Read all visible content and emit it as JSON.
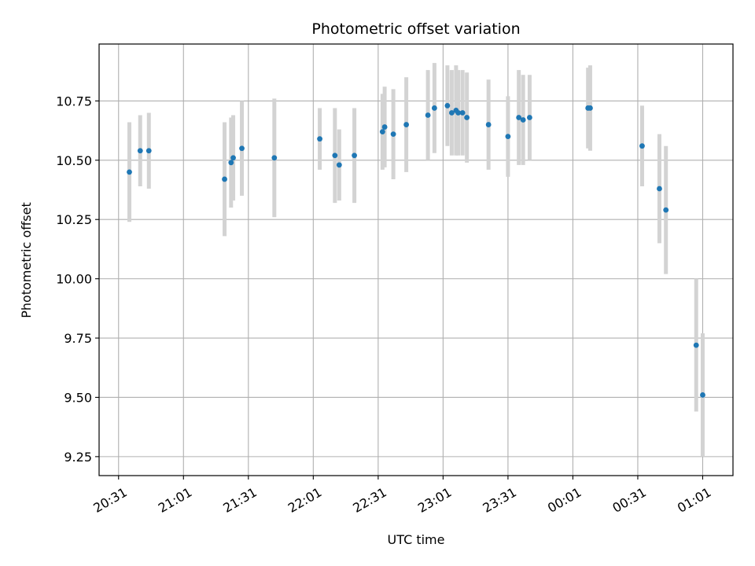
{
  "chart_data": {
    "type": "scatter",
    "title": "Photometric offset variation",
    "xlabel": "UTC time",
    "ylabel": "Photometric offset",
    "grid": true,
    "xlim": [
      "20:22",
      "01:15"
    ],
    "ylim": [
      9.17,
      10.99
    ],
    "x_ticks": [
      "20:31",
      "21:01",
      "21:31",
      "22:01",
      "22:31",
      "23:01",
      "23:31",
      "00:01",
      "00:31",
      "01:01"
    ],
    "y_ticks": [
      9.25,
      9.5,
      9.75,
      10.0,
      10.25,
      10.5,
      10.75
    ],
    "y_tick_labels": [
      "9.25",
      "9.50",
      "9.75",
      "10.00",
      "10.25",
      "10.50",
      "10.75"
    ],
    "marker_color": "#1f77b4",
    "errorbar_color": "#d3d3d3",
    "points": [
      {
        "x": "20:36",
        "y": 10.45,
        "yerr": 0.21
      },
      {
        "x": "20:41",
        "y": 10.54,
        "yerr": 0.15
      },
      {
        "x": "20:45",
        "y": 10.54,
        "yerr": 0.16
      },
      {
        "x": "21:20",
        "y": 10.42,
        "yerr": 0.24
      },
      {
        "x": "21:23",
        "y": 10.49,
        "yerr": 0.19
      },
      {
        "x": "21:24",
        "y": 10.51,
        "yerr": 0.18
      },
      {
        "x": "21:28",
        "y": 10.55,
        "yerr": 0.2
      },
      {
        "x": "21:43",
        "y": 10.51,
        "yerr": 0.25
      },
      {
        "x": "22:04",
        "y": 10.59,
        "yerr": 0.13
      },
      {
        "x": "22:11",
        "y": 10.52,
        "yerr": 0.2
      },
      {
        "x": "22:13",
        "y": 10.48,
        "yerr": 0.15
      },
      {
        "x": "22:20",
        "y": 10.52,
        "yerr": 0.2
      },
      {
        "x": "22:33",
        "y": 10.62,
        "yerr": 0.16
      },
      {
        "x": "22:34",
        "y": 10.64,
        "yerr": 0.17
      },
      {
        "x": "22:38",
        "y": 10.61,
        "yerr": 0.19
      },
      {
        "x": "22:44",
        "y": 10.65,
        "yerr": 0.2
      },
      {
        "x": "22:54",
        "y": 10.69,
        "yerr": 0.19
      },
      {
        "x": "22:57",
        "y": 10.72,
        "yerr": 0.19
      },
      {
        "x": "23:03",
        "y": 10.73,
        "yerr": 0.17
      },
      {
        "x": "23:05",
        "y": 10.7,
        "yerr": 0.18
      },
      {
        "x": "23:07",
        "y": 10.71,
        "yerr": 0.19
      },
      {
        "x": "23:08",
        "y": 10.7,
        "yerr": 0.18
      },
      {
        "x": "23:10",
        "y": 10.7,
        "yerr": 0.18
      },
      {
        "x": "23:12",
        "y": 10.68,
        "yerr": 0.19
      },
      {
        "x": "23:22",
        "y": 10.65,
        "yerr": 0.19
      },
      {
        "x": "23:31",
        "y": 10.6,
        "yerr": 0.17
      },
      {
        "x": "23:36",
        "y": 10.68,
        "yerr": 0.2
      },
      {
        "x": "23:38",
        "y": 10.67,
        "yerr": 0.19
      },
      {
        "x": "23:41",
        "y": 10.68,
        "yerr": 0.18
      },
      {
        "x": "00:08",
        "y": 10.72,
        "yerr": 0.17
      },
      {
        "x": "00:09",
        "y": 10.72,
        "yerr": 0.18
      },
      {
        "x": "00:33",
        "y": 10.56,
        "yerr": 0.17
      },
      {
        "x": "00:41",
        "y": 10.38,
        "yerr": 0.23
      },
      {
        "x": "00:44",
        "y": 10.29,
        "yerr": 0.27
      },
      {
        "x": "00:58",
        "y": 9.72,
        "yerr": 0.28
      },
      {
        "x": "01:01",
        "y": 9.51,
        "yerr": 0.26
      }
    ]
  }
}
